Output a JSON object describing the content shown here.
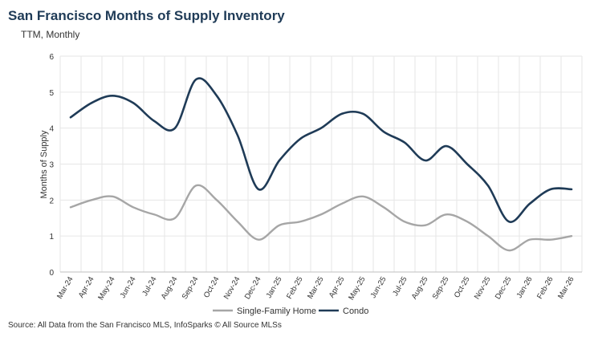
{
  "chart_data": {
    "type": "line",
    "title": "San Francisco Months of Supply Inventory",
    "subtitle": "TTM, Monthly",
    "ylabel": "Months of Supply",
    "xlabel": "",
    "ylim": [
      0,
      6
    ],
    "yticks": [
      0,
      1,
      2,
      3,
      4,
      5,
      6
    ],
    "grid": true,
    "legend_position": "bottom",
    "categories": [
      "Mar-24",
      "Apr-24",
      "May-24",
      "Jun-24",
      "Jul-24",
      "Aug-24",
      "Sep-24",
      "Oct-24",
      "Nov-24",
      "Dec-24",
      "Jan-25",
      "Feb-25",
      "Mar-25",
      "Apr-25",
      "May-25",
      "Jun-25",
      "Jul-25",
      "Aug-25",
      "Sep-25",
      "Oct-25",
      "Nov-25",
      "Dec-25",
      "Jan-26",
      "Feb-26",
      "Mar-26"
    ],
    "series": [
      {
        "name": "Single-Family Home",
        "color": "#a6a6a6",
        "values": [
          1.8,
          2.0,
          2.1,
          1.8,
          1.6,
          1.5,
          2.4,
          2.0,
          1.4,
          0.9,
          1.3,
          1.4,
          1.6,
          1.9,
          2.1,
          1.8,
          1.4,
          1.3,
          1.6,
          1.4,
          1.0,
          0.6,
          0.9,
          0.9,
          1.0
        ]
      },
      {
        "name": "Condo",
        "color": "#1f3b57",
        "values": [
          4.3,
          4.7,
          4.9,
          4.7,
          4.2,
          4.0,
          5.35,
          4.9,
          3.8,
          2.3,
          3.1,
          3.7,
          4.0,
          4.4,
          4.4,
          3.9,
          3.6,
          3.1,
          3.5,
          3.0,
          2.4,
          1.4,
          1.9,
          2.3,
          2.3
        ]
      }
    ]
  },
  "source_text": "Source: All Data from the San Francisco MLS, InfoSparks © All Source MLSs"
}
